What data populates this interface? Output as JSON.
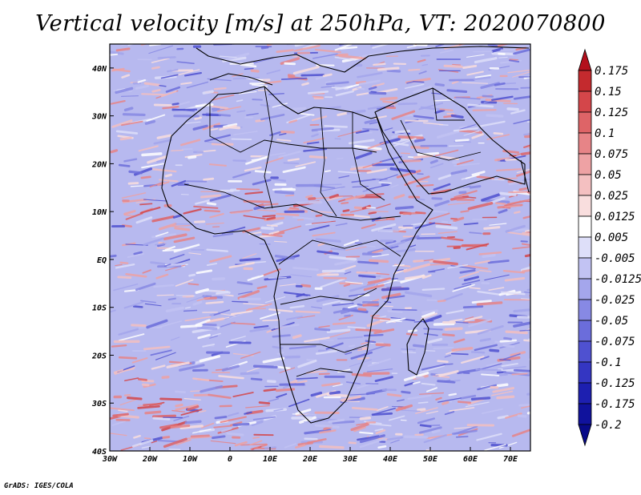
{
  "title": "Vertical velocity [m/s] at 250hPa, VT: 2020070800",
  "credit": "GrADS: IGES/COLA",
  "map": {
    "lon_range": [
      -30,
      75
    ],
    "lat_range": [
      -40,
      45
    ],
    "lon_ticks": [
      "30W",
      "20W",
      "10W",
      "0",
      "10E",
      "20E",
      "30E",
      "40E",
      "50E",
      "60E",
      "70E"
    ],
    "lat_ticks": [
      "40N",
      "30N",
      "20N",
      "10N",
      "EQ",
      "10S",
      "20S",
      "30S",
      "40S"
    ]
  },
  "colorbar": {
    "levels": [
      "0.175",
      "0.15",
      "0.125",
      "0.1",
      "0.075",
      "0.05",
      "0.025",
      "0.0125",
      "0.005",
      "-0.005",
      "-0.0125",
      "-0.025",
      "-0.05",
      "-0.075",
      "-0.1",
      "-0.125",
      "-0.175",
      "-0.2"
    ],
    "colors": [
      "#b3101c",
      "#c42a2e",
      "#d4464a",
      "#de6467",
      "#e78487",
      "#eea2a4",
      "#f4c0c1",
      "#f9dede",
      "#ffffff",
      "#dedff9",
      "#c2c3f3",
      "#a4a6ec",
      "#8789e4",
      "#6b6ddb",
      "#4f51d0",
      "#3436c2",
      "#1d1fb0",
      "#10129c",
      "#080a88"
    ]
  }
}
